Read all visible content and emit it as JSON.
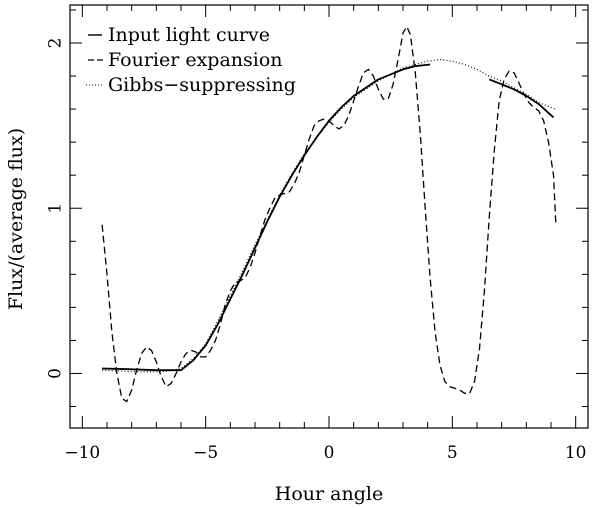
{
  "chart_data": {
    "type": "line",
    "title": "",
    "xlabel": "Hour angle",
    "ylabel": "Flux/(average flux)",
    "xlim": [
      -10.5,
      10.5
    ],
    "ylim": [
      -0.33,
      2.23
    ],
    "xticks_major": [
      -10,
      -5,
      0,
      5,
      10
    ],
    "xtick_labels": [
      "−10",
      "−5",
      "0",
      "5",
      "10"
    ],
    "xticks_minor_step": 1,
    "yticks_major": [
      0,
      1,
      2
    ],
    "ytick_labels": [
      "0",
      "1",
      "2"
    ],
    "yticks_minor_step": 0.2,
    "grid": false,
    "legend_position": "top-left",
    "series": [
      {
        "name": "Input light curve",
        "style": "solid",
        "segments": [
          [
            [
              -9.2,
              0.03
            ],
            [
              -8,
              0.025
            ],
            [
              -7,
              0.02
            ],
            [
              -6,
              0.02
            ],
            [
              -5.5,
              0.08
            ],
            [
              -5,
              0.17
            ],
            [
              -4.5,
              0.3
            ],
            [
              -4,
              0.45
            ],
            [
              -3.5,
              0.6
            ],
            [
              -3,
              0.76
            ],
            [
              -2.5,
              0.92
            ],
            [
              -2,
              1.07
            ],
            [
              -1.5,
              1.2
            ],
            [
              -1,
              1.32
            ],
            [
              -0.5,
              1.43
            ],
            [
              0,
              1.53
            ],
            [
              0.5,
              1.61
            ],
            [
              1,
              1.68
            ],
            [
              1.5,
              1.73
            ],
            [
              2,
              1.78
            ],
            [
              2.5,
              1.81
            ],
            [
              3,
              1.84
            ],
            [
              3.5,
              1.86
            ],
            [
              4.1,
              1.87
            ]
          ],
          [
            [
              6.5,
              1.78
            ],
            [
              7,
              1.75
            ],
            [
              7.5,
              1.72
            ],
            [
              8,
              1.68
            ],
            [
              8.5,
              1.63
            ],
            [
              9.1,
              1.55
            ]
          ]
        ]
      },
      {
        "name": "Fourier expansion",
        "style": "dashed",
        "points": [
          [
            -9.2,
            0.9
          ],
          [
            -9,
            0.6
          ],
          [
            -8.8,
            0.25
          ],
          [
            -8.6,
            0.0
          ],
          [
            -8.4,
            -0.15
          ],
          [
            -8.2,
            -0.17
          ],
          [
            -8,
            -0.1
          ],
          [
            -7.8,
            0.02
          ],
          [
            -7.6,
            0.12
          ],
          [
            -7.4,
            0.16
          ],
          [
            -7.2,
            0.14
          ],
          [
            -7,
            0.07
          ],
          [
            -6.8,
            -0.02
          ],
          [
            -6.6,
            -0.08
          ],
          [
            -6.4,
            -0.06
          ],
          [
            -6.2,
            0.0
          ],
          [
            -6,
            0.07
          ],
          [
            -5.8,
            0.12
          ],
          [
            -5.6,
            0.14
          ],
          [
            -5.4,
            0.13
          ],
          [
            -5.2,
            0.1
          ],
          [
            -5,
            0.1
          ],
          [
            -4.8,
            0.14
          ],
          [
            -4.6,
            0.2
          ],
          [
            -4.4,
            0.3
          ],
          [
            -4.2,
            0.42
          ],
          [
            -4,
            0.5
          ],
          [
            -3.8,
            0.55
          ],
          [
            -3.6,
            0.56
          ],
          [
            -3.4,
            0.58
          ],
          [
            -3.2,
            0.64
          ],
          [
            -3,
            0.73
          ],
          [
            -2.8,
            0.83
          ],
          [
            -2.6,
            0.93
          ],
          [
            -2.4,
            1.0
          ],
          [
            -2.2,
            1.06
          ],
          [
            -2,
            1.08
          ],
          [
            -1.8,
            1.09
          ],
          [
            -1.6,
            1.1
          ],
          [
            -1.4,
            1.15
          ],
          [
            -1.2,
            1.22
          ],
          [
            -1,
            1.32
          ],
          [
            -0.8,
            1.42
          ],
          [
            -0.6,
            1.5
          ],
          [
            -0.4,
            1.53
          ],
          [
            -0.2,
            1.54
          ],
          [
            0,
            1.53
          ],
          [
            0.2,
            1.5
          ],
          [
            0.4,
            1.48
          ],
          [
            0.6,
            1.5
          ],
          [
            0.8,
            1.56
          ],
          [
            1,
            1.65
          ],
          [
            1.2,
            1.74
          ],
          [
            1.4,
            1.82
          ],
          [
            1.6,
            1.84
          ],
          [
            1.8,
            1.8
          ],
          [
            2,
            1.72
          ],
          [
            2.2,
            1.66
          ],
          [
            2.4,
            1.66
          ],
          [
            2.6,
            1.75
          ],
          [
            2.8,
            1.9
          ],
          [
            3,
            2.06
          ],
          [
            3.15,
            2.1
          ],
          [
            3.3,
            2.05
          ],
          [
            3.5,
            1.82
          ],
          [
            3.7,
            1.45
          ],
          [
            3.9,
            1.0
          ],
          [
            4.1,
            0.58
          ],
          [
            4.3,
            0.25
          ],
          [
            4.5,
            0.05
          ],
          [
            4.7,
            -0.05
          ],
          [
            4.9,
            -0.08
          ],
          [
            5.1,
            -0.09
          ],
          [
            5.3,
            -0.1
          ],
          [
            5.5,
            -0.12
          ],
          [
            5.7,
            -0.12
          ],
          [
            5.9,
            -0.05
          ],
          [
            6.1,
            0.15
          ],
          [
            6.3,
            0.5
          ],
          [
            6.5,
            0.95
          ],
          [
            6.7,
            1.35
          ],
          [
            6.9,
            1.65
          ],
          [
            7.1,
            1.78
          ],
          [
            7.3,
            1.83
          ],
          [
            7.5,
            1.82
          ],
          [
            7.7,
            1.76
          ],
          [
            7.9,
            1.69
          ],
          [
            8.1,
            1.64
          ],
          [
            8.3,
            1.61
          ],
          [
            8.5,
            1.59
          ],
          [
            8.7,
            1.53
          ],
          [
            8.9,
            1.4
          ],
          [
            9.1,
            1.2
          ],
          [
            9.2,
            0.9
          ]
        ]
      },
      {
        "name": "Gibbs−suppressing",
        "style": "dotted",
        "points": [
          [
            -9.2,
            0.02
          ],
          [
            -8.5,
            0.015
          ],
          [
            -8,
            0.01
          ],
          [
            -7.5,
            0.01
          ],
          [
            -7,
            0.01
          ],
          [
            -6.5,
            0.015
          ],
          [
            -6,
            0.03
          ],
          [
            -5.5,
            0.09
          ],
          [
            -5,
            0.18
          ],
          [
            -4.5,
            0.32
          ],
          [
            -4,
            0.47
          ],
          [
            -3.5,
            0.62
          ],
          [
            -3,
            0.78
          ],
          [
            -2.5,
            0.93
          ],
          [
            -2,
            1.08
          ],
          [
            -1.5,
            1.21
          ],
          [
            -1,
            1.33
          ],
          [
            -0.5,
            1.43
          ],
          [
            0,
            1.52
          ],
          [
            0.5,
            1.6
          ],
          [
            1,
            1.67
          ],
          [
            1.5,
            1.72
          ],
          [
            2,
            1.77
          ],
          [
            2.5,
            1.81
          ],
          [
            3,
            1.85
          ],
          [
            3.5,
            1.87
          ],
          [
            4,
            1.89
          ],
          [
            4.5,
            1.9
          ],
          [
            5,
            1.89
          ],
          [
            5.5,
            1.87
          ],
          [
            6,
            1.84
          ],
          [
            6.5,
            1.8
          ],
          [
            7,
            1.77
          ],
          [
            7.5,
            1.73
          ],
          [
            8,
            1.69
          ],
          [
            8.5,
            1.64
          ],
          [
            9,
            1.61
          ],
          [
            9.2,
            1.6
          ]
        ]
      }
    ]
  }
}
